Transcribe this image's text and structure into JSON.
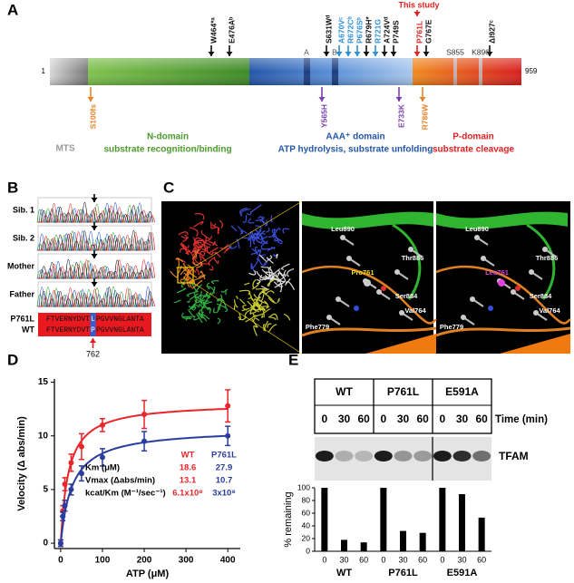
{
  "panel_labels": [
    "A",
    "B",
    "C",
    "D",
    "E"
  ],
  "panel_a": {
    "start": 1,
    "end": 959,
    "this_study": "This study",
    "mutations_above": [
      {
        "label": "W464*ᵃ",
        "color": "#111111"
      },
      {
        "label": "E476Aᵇ",
        "color": "#111111"
      },
      {
        "label": "S631Wᵈ",
        "color": "#111111"
      },
      {
        "label": "A670Vᶜ",
        "color": "#2b8fd6"
      },
      {
        "label": "R672Cᵇ",
        "color": "#2b8fd6"
      },
      {
        "label": "P676Sᵇ",
        "color": "#2b8fd6"
      },
      {
        "label": "R679H*",
        "color": "#111111"
      },
      {
        "label": "R721G",
        "color": "#2b8fd6"
      },
      {
        "label": "A724Vᵈ",
        "color": "#111111"
      },
      {
        "label": "P749S",
        "color": "#111111"
      },
      {
        "label": "P761L",
        "color": "#e02020"
      },
      {
        "label": "G767E",
        "color": "#111111"
      },
      {
        "label": "Δl927ᶜ",
        "color": "#111111"
      }
    ],
    "motifs": [
      "A",
      "B"
    ],
    "sites": [
      "S855",
      "K896"
    ],
    "mutations_below": [
      {
        "label": "S100fs",
        "color": "#e8832a"
      },
      {
        "label": "Y565H",
        "color": "#7a3fb0"
      },
      {
        "label": "E733K",
        "color": "#7a3fb0"
      },
      {
        "label": "R786W",
        "color": "#e8832a"
      }
    ],
    "domains": [
      {
        "name": "MTS",
        "color": "#999999"
      },
      {
        "name": "N-domain",
        "function": "substrate recognition/binding",
        "color": "#4d9a2c"
      },
      {
        "name": "AAA⁺ domain",
        "function": "ATP hydrolysis, substrate unfolding",
        "color": "#2456a8"
      },
      {
        "name": "P-domain",
        "function": "substrate cleavage",
        "color": "#e02020"
      }
    ]
  },
  "panel_b": {
    "samples": [
      "Sib. 1",
      "Sib. 2",
      "Mother",
      "Father"
    ],
    "alignment": [
      {
        "name": "P761L",
        "prefix": "FTVERNYDVT",
        "residue": "L",
        "suffix": "PGVVNGLANTA"
      },
      {
        "name": "WT",
        "prefix": "FTVERNYDVT",
        "residue": "P",
        "suffix": "PGVVNGLANTA"
      }
    ],
    "position": 762
  },
  "panel_c": {
    "wild_type_labels": [
      "Leu890",
      "Thr886",
      "Pro761",
      "Ser884",
      "Val764",
      "Phe779"
    ],
    "mutant_labels": [
      "Leu890",
      "Thr886",
      "Leu761",
      "Ser884",
      "Val764",
      "Phe779"
    ]
  },
  "chart_data": [
    {
      "type": "line",
      "x_label": "ATP (μM)",
      "y_label": "Velocity (Δ abs/min)",
      "x": [
        0,
        5,
        10,
        25,
        50,
        100,
        200,
        400
      ],
      "xlim": [
        -15,
        430
      ],
      "xticks": [
        0,
        100,
        200,
        300,
        400
      ],
      "ylim": [
        -0.5,
        15.3
      ],
      "yticks": [
        0,
        5,
        10,
        15
      ],
      "parameter_labels": [
        "Km (μM)",
        "Vmax (Δabs/min)",
        "kcat/Km (M⁻¹/sec⁻¹)"
      ],
      "series": [
        {
          "name": "WT",
          "color": "#e8262b",
          "values": [
            0,
            3,
            5.5,
            7.5,
            9,
            11,
            12,
            12.8
          ],
          "errors": [
            0.3,
            0.5,
            0.6,
            0.8,
            1.2,
            0.6,
            1.3,
            1.5
          ],
          "km": 18.6,
          "vmax": 13.1,
          "kcat_km": {
            "value": 610000000,
            "label": "6.1x10⁸"
          }
        },
        {
          "name": "P761L",
          "color": "#2b3d9c",
          "values": [
            0,
            2.5,
            3.5,
            5,
            6.5,
            8,
            9.5,
            10
          ],
          "errors": [
            0.3,
            0.4,
            0.5,
            0.5,
            0.7,
            0.8,
            0.9,
            0.9
          ],
          "km": 27.9,
          "vmax": 10.7,
          "kcat_km": {
            "value": 300000000,
            "label": "3x10⁸"
          }
        }
      ]
    },
    {
      "type": "bar",
      "y_label": "% remaining",
      "time_label": "Time (min)",
      "blot_label": "TFAM",
      "categories": [
        "0",
        "30",
        "60"
      ],
      "color": "#000000",
      "ylim": [
        0,
        100
      ],
      "yticks": [
        0,
        20,
        40,
        60,
        80,
        100
      ],
      "series": [
        {
          "name": "WT",
          "values": [
            100,
            18,
            14
          ]
        },
        {
          "name": "P761L",
          "values": [
            100,
            32,
            29
          ]
        },
        {
          "name": "E591A",
          "values": [
            100,
            90,
            53
          ]
        }
      ]
    }
  ]
}
